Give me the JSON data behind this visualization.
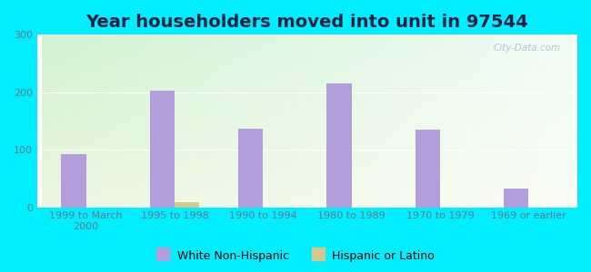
{
  "title": "Year householders moved into unit in 97544",
  "categories": [
    "1999 to March\n2000",
    "1995 to 1998",
    "1990 to 1994",
    "1980 to 1989",
    "1970 to 1979",
    "1969 or earlier"
  ],
  "white_values": [
    93,
    202,
    136,
    215,
    135,
    32
  ],
  "hispanic_values": [
    0,
    8,
    0,
    0,
    0,
    0
  ],
  "white_color": "#b39ddb",
  "hispanic_color": "#d4c98a",
  "bar_width": 0.28,
  "ylim": [
    0,
    300
  ],
  "yticks": [
    0,
    100,
    200,
    300
  ],
  "bg_outer": "#00eeff",
  "watermark": "City-Data.com",
  "title_fontsize": 14,
  "tick_fontsize": 8,
  "legend_fontsize": 9,
  "tick_color": "#667788"
}
